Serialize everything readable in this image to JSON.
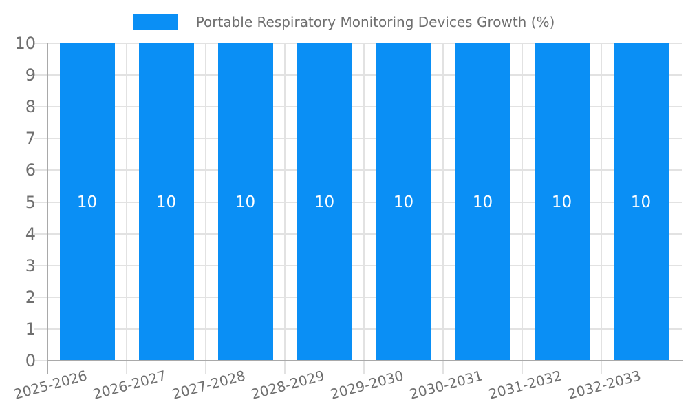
{
  "legend": {
    "label": "Portable Respiratory Monitoring Devices Growth (%)"
  },
  "chart_data": {
    "type": "bar",
    "title": "Portable Respiratory Monitoring Devices Growth (%)",
    "categories": [
      "2025-2026",
      "2026-2027",
      "2027-2028",
      "2028-2029",
      "2029-2030",
      "2030-2031",
      "2031-2032",
      "2032-2033"
    ],
    "series": [
      {
        "name": "Portable Respiratory Monitoring Devices Growth (%)",
        "values": [
          10,
          10,
          10,
          10,
          10,
          10,
          10,
          10
        ]
      }
    ],
    "bar_value_labels": [
      "10",
      "10",
      "10",
      "10",
      "10",
      "10",
      "10",
      "10"
    ],
    "xlabel": "",
    "ylabel": "",
    "ylim": [
      0,
      10
    ],
    "ytick_step": 1,
    "ytick_labels": [
      "0",
      "1",
      "2",
      "3",
      "4",
      "5",
      "6",
      "7",
      "8",
      "9",
      "10"
    ],
    "grid": true,
    "legend_position": "top-center",
    "x_tick_label_rotation_deg": -15,
    "colors": {
      "bar": "#0a8ff5",
      "bar_value_label": "#ffffff",
      "axis_text": "#6f6f6f",
      "grid_line": "#e2e2e2",
      "axis_line": "#a9a9a9",
      "background": "#ffffff"
    }
  }
}
